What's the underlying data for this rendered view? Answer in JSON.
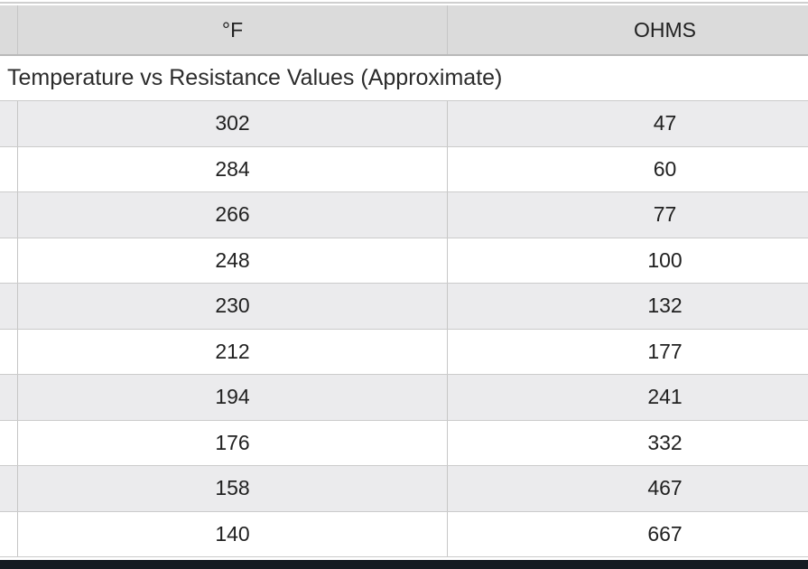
{
  "page": {
    "caption": "Temperature vs Resistance Values (Approximate)"
  },
  "table": {
    "columns": [
      {
        "key": "f",
        "label": "°F"
      },
      {
        "key": "ohms",
        "label": "OHMS"
      }
    ],
    "rows": [
      {
        "f": "302",
        "ohms": "47"
      },
      {
        "f": "284",
        "ohms": "60"
      },
      {
        "f": "266",
        "ohms": "77"
      },
      {
        "f": "248",
        "ohms": "100"
      },
      {
        "f": "230",
        "ohms": "132"
      },
      {
        "f": "212",
        "ohms": "177"
      },
      {
        "f": "194",
        "ohms": "241"
      },
      {
        "f": "176",
        "ohms": "332"
      },
      {
        "f": "158",
        "ohms": "467"
      },
      {
        "f": "140",
        "ohms": "667"
      }
    ]
  },
  "colors": {
    "header_bg": "#dbdbdb",
    "row_alt_bg": "#ebebed",
    "row_bg": "#ffffff",
    "border": "#c9c9c9",
    "header_border": "#b9b9b9",
    "footer_bar": "#151a21",
    "text": "#212121"
  },
  "chart_data": {
    "type": "table",
    "title": "Temperature vs Resistance Values (Approximate)",
    "columns": [
      "°F",
      "OHMS"
    ],
    "rows": [
      [
        302,
        47
      ],
      [
        284,
        60
      ],
      [
        266,
        77
      ],
      [
        248,
        100
      ],
      [
        230,
        132
      ],
      [
        212,
        177
      ],
      [
        194,
        241
      ],
      [
        176,
        332
      ],
      [
        158,
        467
      ],
      [
        140,
        667
      ]
    ]
  }
}
